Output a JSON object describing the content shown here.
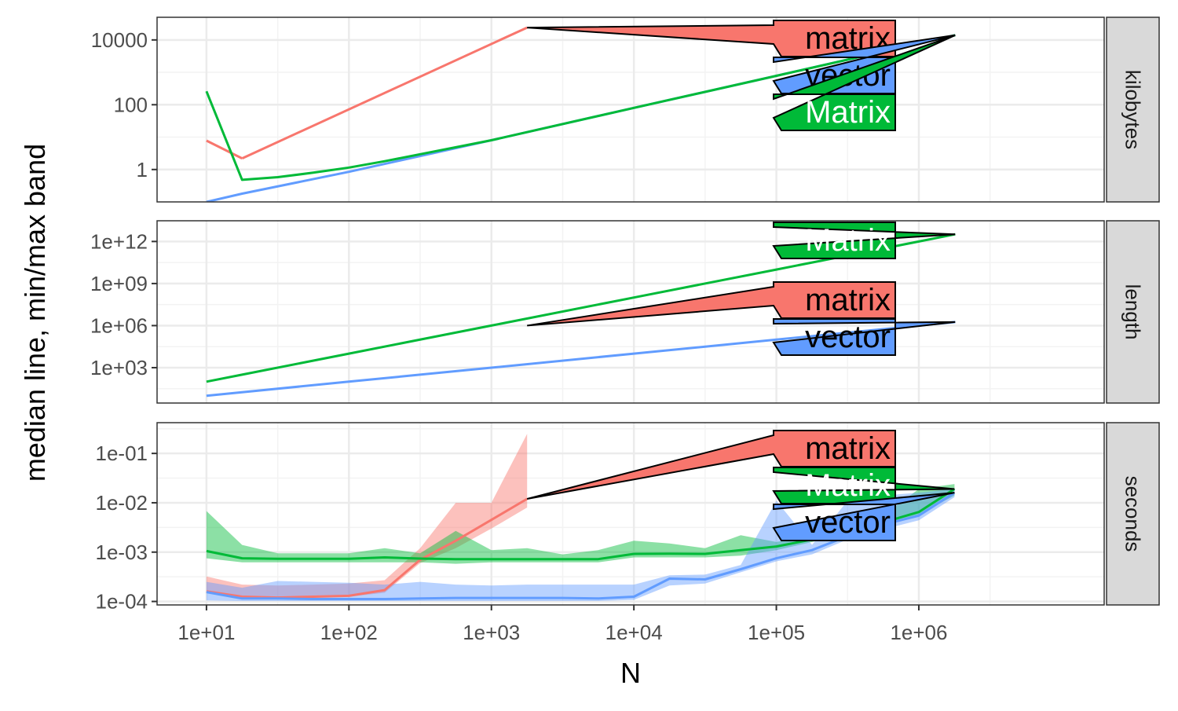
{
  "colors": {
    "matrix": "#F8766D",
    "vector": "#619CFF",
    "Matrix": "#00BA38",
    "grid_major": "#EBEBEB",
    "grid_minor": "#F3F3F3",
    "strip_fill": "#D9D9D9",
    "panel_border": "#333333"
  },
  "chart_data": {
    "type": "line",
    "ylabel": "median line, min/max band",
    "xlabel": "N",
    "x_scale": "log10",
    "x_ticks": [
      10,
      100,
      1000,
      10000,
      100000,
      1000000
    ],
    "x_tick_labels": [
      "1e+01",
      "1e+02",
      "1e+03",
      "1e+04",
      "1e+05",
      "1e+06"
    ],
    "x_range": [
      4.5,
      20000000
    ],
    "grid": true,
    "facets": [
      {
        "strip": "kilobytes",
        "y_scale": "log10",
        "y_range": [
          0.1,
          50000
        ],
        "y_ticks": [
          1,
          100,
          10000
        ],
        "y_tick_labels": [
          "1",
          "100",
          "10000"
        ],
        "series": [
          {
            "name": "matrix",
            "x": [
              10,
              17.8
            ],
            "y": [
              7.8,
              2.2
            ]
          },
          {
            "name": "matrix",
            "x": [
              17.8,
              1780
            ],
            "y": [
              2.2,
              24000
            ]
          },
          {
            "name": "vector",
            "x": [
              10,
              17.8,
              100,
              1000,
              10000,
              100000,
              1000000,
              1800000
            ],
            "y": [
              0.1,
              0.18,
              0.85,
              8,
              80,
              780,
              7800,
              14000
            ]
          },
          {
            "name": "Matrix",
            "x": [
              10,
              17.8,
              31.6,
              56.2,
              100,
              178,
              1000,
              10000,
              100000,
              1000000,
              1800000
            ],
            "y": [
              260,
              0.48,
              0.58,
              0.8,
              1.15,
              1.8,
              8,
              80,
              780,
              7800,
              14000
            ]
          }
        ],
        "labels": [
          {
            "name": "matrix",
            "text": "matrix",
            "x": 1780,
            "y": 24000
          },
          {
            "name": "vector",
            "text": "vector",
            "x": 1800000,
            "y": 14000
          },
          {
            "name": "Matrix",
            "text": "Matrix",
            "x": 1800000,
            "y": 14000
          }
        ]
      },
      {
        "strip": "length",
        "y_scale": "log10",
        "y_range": [
          3,
          30000000000000
        ],
        "y_ticks": [
          1000,
          1000000,
          1000000000,
          1000000000000
        ],
        "y_tick_labels": [
          "1e+03",
          "1e+06",
          "1e+09",
          "1e+12"
        ],
        "series": [
          {
            "name": "Matrix",
            "x": [
              10,
              17.8,
              100,
              1000,
              10000,
              100000,
              1000000,
              1800000
            ],
            "y": [
              100,
              316,
              10000,
              1000000,
              100000000,
              10000000000,
              1000000000000,
              3240000000000
            ]
          },
          {
            "name": "vector",
            "x": [
              10,
              17.8,
              100,
              1000,
              10000,
              100000,
              1000000,
              1800000
            ],
            "y": [
              10,
              17.8,
              100,
              1000,
              10000,
              100000,
              1000000,
              1800000
            ]
          }
        ],
        "labels": [
          {
            "name": "Matrix",
            "text": "Matrix",
            "x": 1800000,
            "y": 3240000000000
          },
          {
            "name": "matrix",
            "text": "matrix",
            "x": 1780,
            "y": 1000000
          },
          {
            "name": "vector",
            "text": "vector",
            "x": 1800000,
            "y": 1800000
          }
        ]
      },
      {
        "strip": "seconds",
        "y_scale": "log10",
        "y_range": [
          8.5e-05,
          0.42
        ],
        "y_ticks": [
          0.0001,
          0.001,
          0.01,
          0.1
        ],
        "y_tick_labels": [
          "1e-04",
          "1e-03",
          "1e-02",
          "1e-01"
        ],
        "series": [
          {
            "name": "matrix",
            "x": [
              10,
              17.8,
              31.6,
              56.2,
              100,
              178,
              316,
              562,
              1000,
              1780
            ],
            "y": [
              0.00016,
              0.000125,
              0.00012,
              0.000125,
              0.00013,
              0.00017,
              0.0007,
              0.0017,
              0.0045,
              0.012
            ],
            "ymin": [
              0.00015,
              0.00012,
              0.000115,
              0.00012,
              0.000125,
              0.00015,
              0.0006,
              0.0012,
              0.003,
              0.008
            ],
            "ymax": [
              0.00032,
              0.00022,
              0.00021,
              0.00022,
              0.00023,
              0.00027,
              0.0012,
              0.01,
              0.01,
              0.25
            ]
          },
          {
            "name": "Matrix",
            "x": [
              10,
              17.8,
              31.6,
              56.2,
              100,
              178,
              316,
              562,
              1000,
              1780,
              3160,
              5620,
              10000,
              17800,
              31600,
              56200,
              100000,
              178000,
              316000,
              562000,
              1000000,
              1780000
            ],
            "y": [
              0.00105,
              0.00075,
              0.00073,
              0.00073,
              0.00073,
              0.00078,
              0.00074,
              0.00072,
              0.00072,
              0.00072,
              0.00072,
              0.00072,
              0.00092,
              0.00093,
              0.00092,
              0.0011,
              0.0013,
              0.0018,
              0.0026,
              0.004,
              0.0065,
              0.019
            ],
            "ymin": [
              0.00075,
              0.00062,
              0.00062,
              0.00062,
              0.00062,
              0.00062,
              0.00062,
              0.00058,
              0.00062,
              0.00062,
              0.00062,
              0.00062,
              0.00078,
              0.00078,
              0.00078,
              0.00085,
              0.0011,
              0.0016,
              0.0024,
              0.0036,
              0.0058,
              0.014
            ],
            "ymax": [
              0.0068,
              0.0014,
              0.00095,
              0.00095,
              0.00095,
              0.0012,
              0.00095,
              0.0027,
              0.0011,
              0.0012,
              0.0009,
              0.0011,
              0.0017,
              0.0015,
              0.0012,
              0.0022,
              0.0016,
              0.0022,
              0.0033,
              0.0055,
              0.019,
              0.024
            ]
          },
          {
            "name": "vector",
            "x": [
              10,
              17.8,
              31.6,
              56.2,
              100,
              178,
              316,
              562,
              1000,
              1780,
              3160,
              5620,
              10000,
              17800,
              31600,
              56200,
              100000,
              178000,
              316000,
              562000,
              1000000,
              1780000
            ],
            "y": [
              0.000155,
              0.000115,
              0.000115,
              0.000112,
              0.000112,
              0.000112,
              0.000115,
              0.000118,
              0.000118,
              0.000118,
              0.000118,
              0.000115,
              0.000125,
              0.00029,
              0.00028,
              0.00045,
              0.00075,
              0.0011,
              0.0021,
              0.0036,
              0.0055,
              0.016
            ],
            "ymin": [
              0.000105,
              0.000102,
              0.000102,
              0.000102,
              0.000102,
              0.000102,
              0.000102,
              0.000102,
              0.000102,
              0.000102,
              0.000102,
              0.000102,
              0.000108,
              0.00021,
              0.00023,
              0.00039,
              0.00065,
              0.0009,
              0.0018,
              0.0029,
              0.0044,
              0.013
            ],
            "ymax": [
              0.00025,
              0.00019,
              0.00026,
              0.00025,
              0.00024,
              0.00022,
              0.00025,
              0.00022,
              0.00021,
              0.00022,
              0.00022,
              0.00022,
              0.00022,
              0.00034,
              0.00035,
              0.00055,
              0.011,
              0.0014,
              0.011,
              0.014,
              0.016,
              0.019
            ]
          }
        ],
        "labels": [
          {
            "name": "matrix",
            "text": "matrix",
            "x": 1780,
            "y": 0.012
          },
          {
            "name": "Matrix",
            "text": "Matrix",
            "x": 1780000,
            "y": 0.019
          },
          {
            "name": "vector",
            "text": "vector",
            "x": 1780000,
            "y": 0.016
          }
        ]
      }
    ]
  }
}
